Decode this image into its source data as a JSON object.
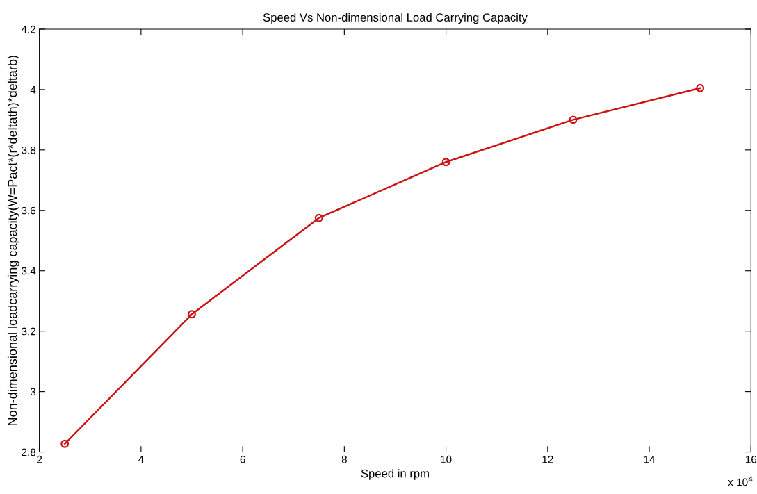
{
  "chart_data": {
    "type": "line",
    "title": "Speed Vs Non-dimensional Load Carrying Capacity",
    "xlabel": "Speed in rpm",
    "ylabel": "Non-dimensional loadcarrying capacity(W=Pact*(r*deltath)*deltarb)",
    "x": [
      2.5,
      5,
      7.5,
      10,
      12.5,
      15
    ],
    "series": [
      {
        "color": "#cc1111",
        "values": [
          2.827,
          3.256,
          3.575,
          3.76,
          3.9,
          4.005
        ]
      }
    ],
    "xlim": [
      2,
      16
    ],
    "xticks": [
      2,
      4,
      6,
      8,
      10,
      12,
      14,
      16
    ],
    "ylim": [
      2.8,
      4.2
    ],
    "yticks": [
      2.8,
      3,
      3.2,
      3.4,
      3.6,
      3.8,
      4,
      4.2
    ],
    "annotations": [
      "x 10$^{4}$"
    ],
    "marker": "circle",
    "line_style": "solid",
    "grid": false,
    "legend": false
  }
}
